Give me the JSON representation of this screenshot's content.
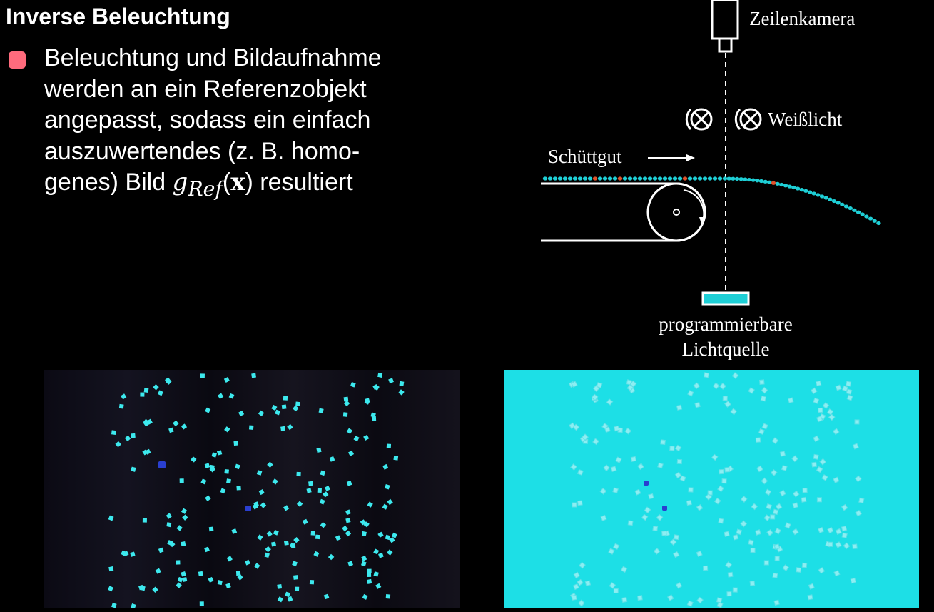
{
  "slide": {
    "title": "Inverse Beleuchtung",
    "bullet": {
      "line1": "Beleuchtung und Bildaufnahme",
      "line2": "werden an ein Referenzobjekt",
      "line3": "angepasst, sodass ein einfach",
      "line4": "auszuwertendes (z. B. homo-",
      "line5_pre": "genes) Bild ",
      "math_g": "g",
      "math_sub": "Ref",
      "math_lp": "(",
      "math_x": "x",
      "math_rp": ")",
      "line5_post": " resultiert"
    }
  },
  "diagram": {
    "camera_label": "Zeilenkamera",
    "light_label": "Weißlicht",
    "material_label": "Schüttgut",
    "source_label_1": "programmierbare",
    "source_label_2": "Lichtquelle"
  },
  "colors": {
    "bullet": "#ff6b7d",
    "particle": "#1ecfd6",
    "defect": "#e0522c",
    "light_source": "#1ecfd6",
    "right_image_bg": "#1ddfe6"
  },
  "images": {
    "left": "dark background with bright cyan particles and two dark blue defects",
    "right": "bright cyan background with pale particles and two dark blue defects"
  }
}
